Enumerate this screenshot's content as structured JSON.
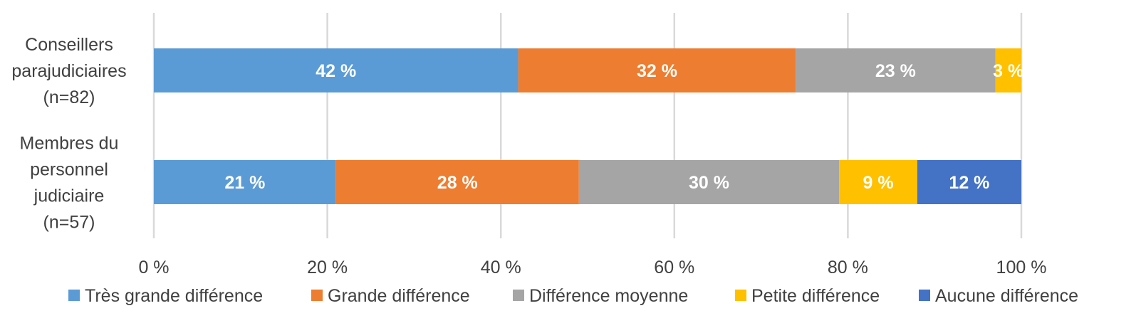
{
  "chart_data": {
    "type": "bar",
    "orientation": "horizontal",
    "stacked": true,
    "categories": [
      [
        "Conseillers",
        "parajudiciaires",
        "(n=82)"
      ],
      [
        "Membres du",
        "personnel",
        "judiciaire",
        "(n=57)"
      ]
    ],
    "series": [
      {
        "name": "Très grande différence",
        "color": "#5B9BD5",
        "values": [
          42,
          21
        ],
        "labels": [
          "42 %",
          "21 %"
        ]
      },
      {
        "name": "Grande différence",
        "color": "#ED7D31",
        "values": [
          32,
          28
        ],
        "labels": [
          "32 %",
          "28 %"
        ]
      },
      {
        "name": "Différence moyenne",
        "color": "#A5A5A5",
        "values": [
          23,
          30
        ],
        "labels": [
          "23 %",
          "30 %"
        ]
      },
      {
        "name": "Petite différence",
        "color": "#FFC000",
        "values": [
          3,
          9
        ],
        "labels": [
          "3 %",
          "9 %"
        ]
      },
      {
        "name": "Aucune différence",
        "color": "#4472C4",
        "values": [
          0,
          12
        ],
        "labels": [
          "",
          "12 %"
        ]
      }
    ],
    "xlim": [
      0,
      100
    ],
    "xticks": [
      0,
      20,
      40,
      60,
      80,
      100
    ],
    "xtick_labels": [
      "0 %",
      "20 %",
      "40 %",
      "60 %",
      "80 %",
      "100 %"
    ],
    "grid": true,
    "legend_position": "bottom"
  }
}
